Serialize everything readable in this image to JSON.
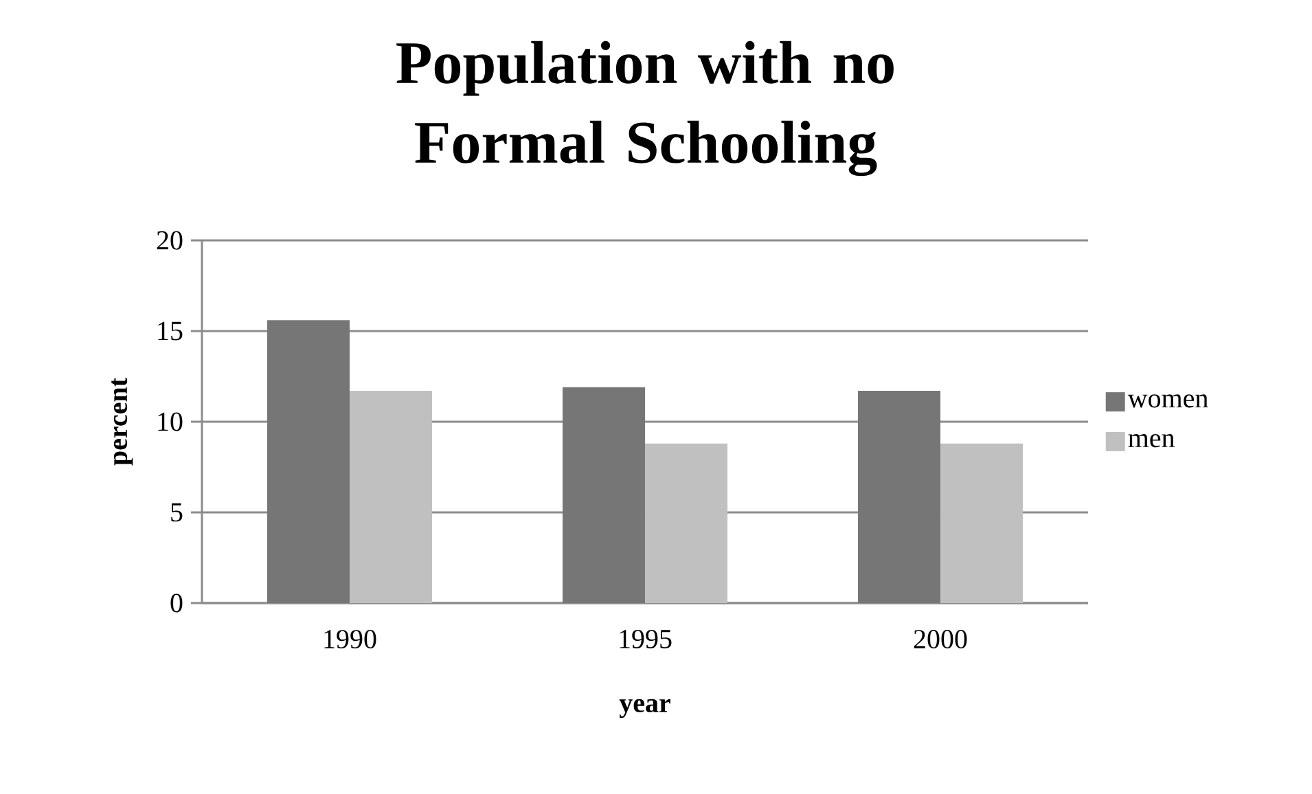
{
  "chart_data": {
    "type": "bar",
    "title": "Population with no Formal Schooling",
    "xlabel": "year",
    "ylabel": "percent",
    "categories": [
      "1990",
      "1995",
      "2000"
    ],
    "series": [
      {
        "name": "women",
        "color": "#767676",
        "values": [
          15.6,
          11.9,
          11.7
        ]
      },
      {
        "name": "men",
        "color": "#c0c0c0",
        "values": [
          11.7,
          8.8,
          8.8
        ]
      }
    ],
    "ylim": [
      0,
      20
    ],
    "yticks": [
      0,
      5,
      10,
      15,
      20
    ],
    "grid": "y",
    "legend": "right"
  }
}
